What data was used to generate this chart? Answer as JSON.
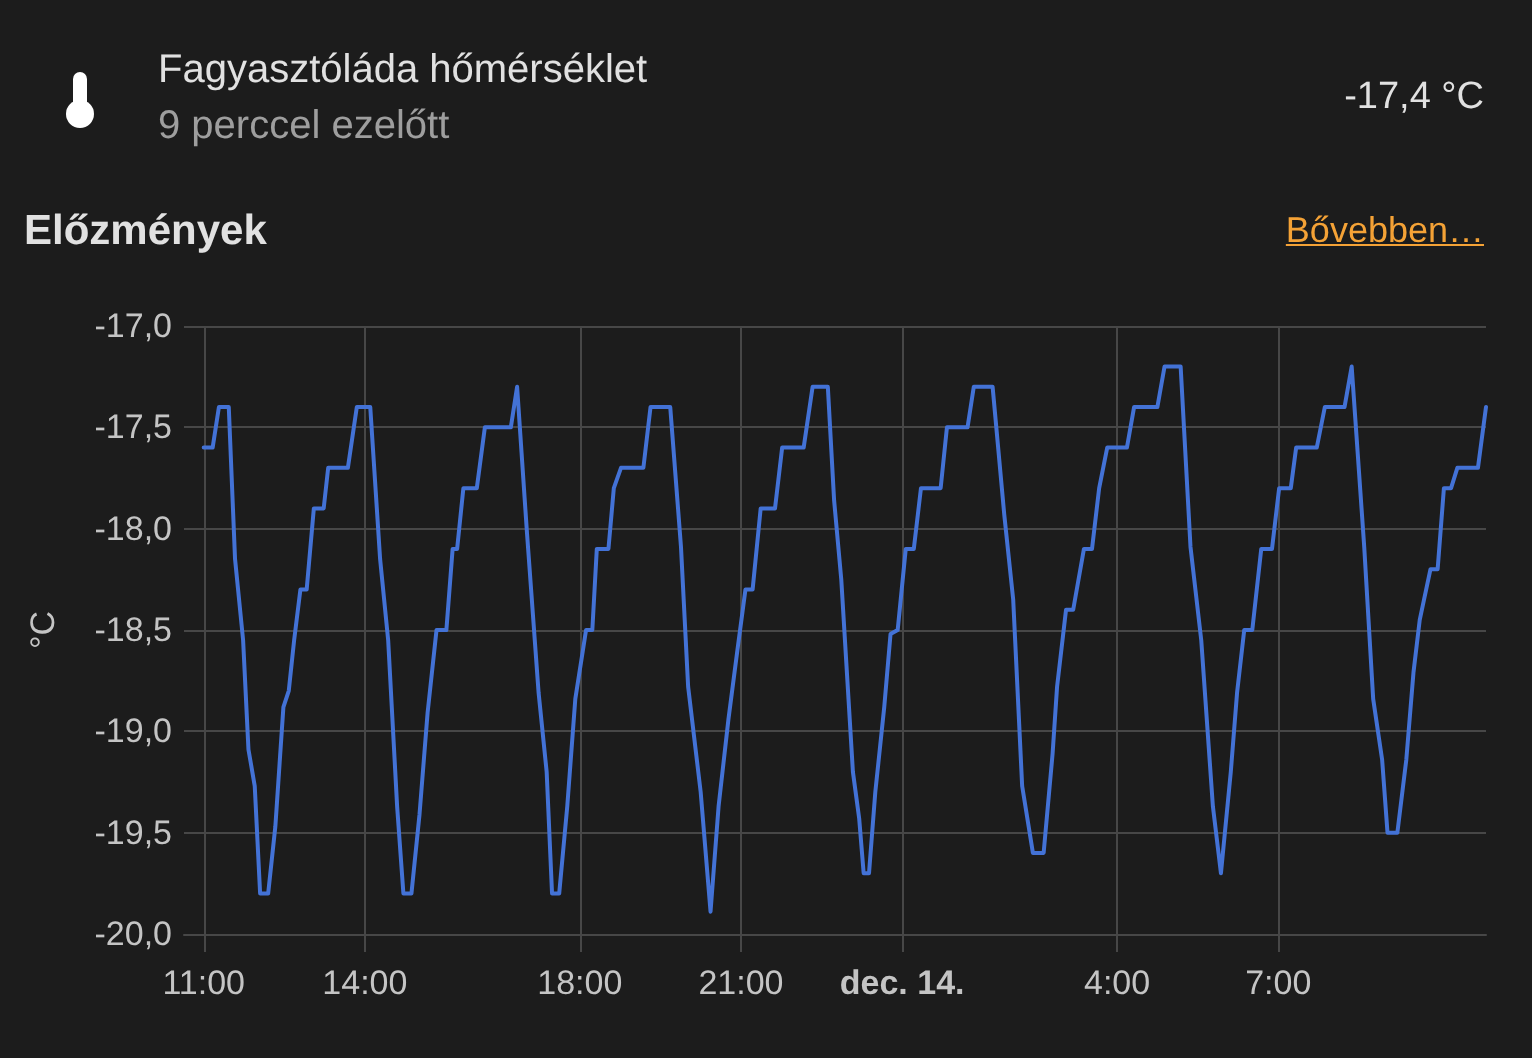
{
  "chart_data": {
    "type": "line",
    "title": "Fagyasztóláda hőmérséklet",
    "subtitle": "9 perccel ezelőtt",
    "ylabel": "°C",
    "annotations": [
      "-17,4 °C",
      "Előzmények",
      "Bővebben…"
    ],
    "x": [
      "--12-13T11:00",
      "--12-13T11:10",
      "--12-13T11:17",
      "--12-13T11:28",
      "--12-13T11:35",
      "--12-13T11:44",
      "--12-13T11:50",
      "--12-13T11:57",
      "--12-13T12:03",
      "--12-13T12:12",
      "--12-13T12:20",
      "--12-13T12:29",
      "--12-13T12:35",
      "--12-13T12:41",
      "--12-13T12:48",
      "--12-13T12:55",
      "--12-13T13:03",
      "--12-13T13:14",
      "--12-13T13:19",
      "--12-13T13:41",
      "--12-13T13:51",
      "--12-13T14:06",
      "--12-13T14:17",
      "--12-13T14:26",
      "--12-13T14:36",
      "--12-13T14:43",
      "--12-13T14:52",
      "--12-13T15:01",
      "--12-13T15:10",
      "--12-13T15:20",
      "--12-13T15:31",
      "--12-13T15:38",
      "--12-13T15:43",
      "--12-13T15:50",
      "--12-13T16:05",
      "--12-13T16:14",
      "--12-13T16:43",
      "--12-13T16:50",
      "--12-13T17:01",
      "--12-13T17:14",
      "--12-13T17:23",
      "--12-13T17:29",
      "--12-13T17:37",
      "--12-13T17:46",
      "--12-13T17:55",
      "--12-13T18:07",
      "--12-13T18:14",
      "--12-13T18:19",
      "--12-13T18:32",
      "--12-13T18:38",
      "--12-13T18:46",
      "--12-13T19:11",
      "--12-13T19:19",
      "--12-13T19:41",
      "--12-13T19:53",
      "--12-13T20:01",
      "--12-13T20:15",
      "--12-13T20:26",
      "--12-13T20:35",
      "--12-13T20:46",
      "--12-13T20:56",
      "--12-13T21:05",
      "--12-13T21:13",
      "--12-13T21:22",
      "--12-13T21:38",
      "--12-13T21:46",
      "--12-13T22:10",
      "--12-13T22:20",
      "--12-13T22:37",
      "--12-13T22:44",
      "--12-13T22:52",
      "--12-13T23:05",
      "--12-13T23:12",
      "--12-13T23:17",
      "--12-13T23:23",
      "--12-13T23:30",
      "--12-13T23:40",
      "--12-13T23:47",
      "--12-13T23:55",
      "--12-14T00:04",
      "--12-14T00:13",
      "--12-14T00:21",
      "--12-14T00:43",
      "--12-14T00:50",
      "--12-14T01:13",
      "--12-14T01:20",
      "--12-14T01:41",
      "--12-14T01:54",
      "--12-14T02:04",
      "--12-14T02:14",
      "--12-14T02:26",
      "--12-14T02:38",
      "--12-14T02:48",
      "--12-14T02:53",
      "--12-14T03:03",
      "--12-14T03:11",
      "--12-14T03:23",
      "--12-14T03:32",
      "--12-14T03:40",
      "--12-14T03:49",
      "--12-14T04:11",
      "--12-14T04:19",
      "--12-14T04:45",
      "--12-14T04:53",
      "--12-14T05:11",
      "--12-14T05:22",
      "--12-14T05:34",
      "--12-14T05:47",
      "--12-14T05:56",
      "--12-14T06:07",
      "--12-14T06:14",
      "--12-14T06:22",
      "--12-14T06:31",
      "--12-14T06:41",
      "--12-14T06:53",
      "--12-14T07:01",
      "--12-14T07:14",
      "--12-14T07:20",
      "--12-14T07:43",
      "--12-14T07:52",
      "--12-14T08:14",
      "--12-14T08:22",
      "--12-14T08:36",
      "--12-14T08:46",
      "--12-14T08:56",
      "--12-14T09:02",
      "--12-14T09:13",
      "--12-14T09:23",
      "--12-14T09:31",
      "--12-14T09:38",
      "--12-14T09:50",
      "--12-14T09:58",
      "--12-14T10:05",
      "--12-14T10:13",
      "--12-14T10:20",
      "--12-14T10:43",
      "--12-14T10:52"
    ],
    "series": [
      {
        "color": "#4372d6",
        "values": [
          -17.6,
          -17.6,
          -17.4,
          -17.4,
          -18.15,
          -18.55,
          -19.09,
          -19.27,
          -19.8,
          -19.8,
          -19.47,
          -18.88,
          -18.8,
          -18.55,
          -18.3,
          -18.3,
          -17.9,
          -17.9,
          -17.7,
          -17.7,
          -17.4,
          -17.4,
          -18.15,
          -18.55,
          -19.37,
          -19.8,
          -19.8,
          -19.41,
          -18.91,
          -18.5,
          -18.5,
          -18.1,
          -18.1,
          -17.8,
          -17.8,
          -17.5,
          -17.5,
          -17.3,
          -18.02,
          -18.81,
          -19.2,
          -19.8,
          -19.8,
          -19.37,
          -18.84,
          -18.5,
          -18.5,
          -18.1,
          -18.1,
          -17.8,
          -17.7,
          -17.7,
          -17.4,
          -17.4,
          -18.09,
          -18.78,
          -19.3,
          -19.89,
          -19.37,
          -18.94,
          -18.6,
          -18.3,
          -18.3,
          -17.9,
          -17.9,
          -17.6,
          -17.6,
          -17.3,
          -17.3,
          -17.86,
          -18.25,
          -19.2,
          -19.43,
          -19.7,
          -19.7,
          -19.3,
          -18.88,
          -18.52,
          -18.5,
          -18.1,
          -18.1,
          -17.8,
          -17.8,
          -17.5,
          -17.5,
          -17.3,
          -17.3,
          -17.93,
          -18.35,
          -19.27,
          -19.6,
          -19.6,
          -19.11,
          -18.78,
          -18.4,
          -18.4,
          -18.1,
          -18.1,
          -17.8,
          -17.6,
          -17.6,
          -17.4,
          -17.4,
          -17.2,
          -17.2,
          -18.09,
          -18.55,
          -19.37,
          -19.7,
          -19.2,
          -18.81,
          -18.5,
          -18.5,
          -18.1,
          -18.1,
          -17.8,
          -17.8,
          -17.6,
          -17.6,
          -17.4,
          -17.4,
          -17.2,
          -18.09,
          -18.84,
          -19.14,
          -19.5,
          -19.5,
          -19.14,
          -18.71,
          -18.45,
          -18.2,
          -18.2,
          -17.8,
          -17.8,
          -17.7,
          -17.7,
          -17.4
        ]
      }
    ],
    "xlim": [
      "--12-13T10:38",
      "--12-14T10:52"
    ],
    "xticks": [
      {
        "value": "--12-13T11:00",
        "label": "11:00"
      },
      {
        "value": "--12-13T14:00",
        "label": "14:00"
      },
      {
        "value": "--12-13T18:00",
        "label": "18:00"
      },
      {
        "value": "--12-13T21:00",
        "label": "21:00"
      },
      {
        "value": "--12-14T00:00",
        "label": "dec. 14."
      },
      {
        "value": "--12-14T04:00",
        "label": "4:00"
      },
      {
        "value": "--12-14T07:00",
        "label": "7:00"
      }
    ],
    "ylim": [
      -20,
      -17
    ],
    "yticks": [
      {
        "value": -20,
        "label": "-20,0"
      },
      {
        "value": -19.5,
        "label": "-19,5"
      },
      {
        "value": -19,
        "label": "-19,0"
      },
      {
        "value": -18.5,
        "label": "-18,5"
      },
      {
        "value": -18,
        "label": "-18,0"
      },
      {
        "value": -17.5,
        "label": "-17,5"
      },
      {
        "value": -17,
        "label": "-17,0"
      }
    ],
    "grid": true
  }
}
